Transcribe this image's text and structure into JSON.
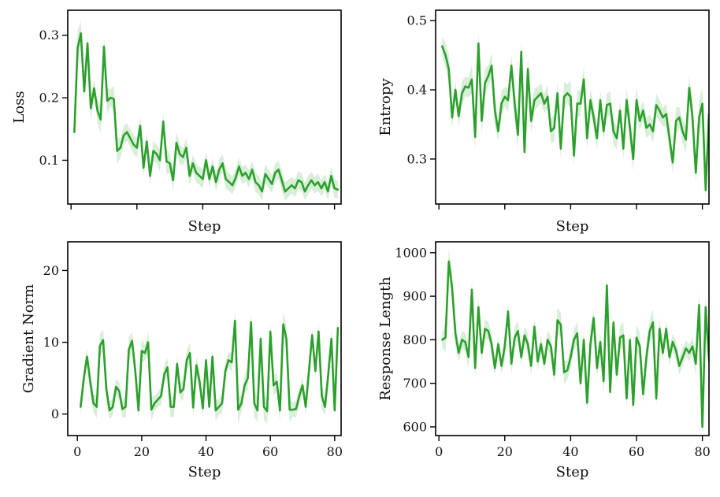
{
  "chart_data": [
    {
      "type": "line",
      "title": "",
      "xlabel": "Step",
      "ylabel": "Loss",
      "xlim": [
        -1,
        82
      ],
      "ylim": [
        0.03,
        0.34
      ],
      "xticks": [
        0,
        20,
        40,
        60,
        80
      ],
      "show_xtick_labels": false,
      "yticks": [
        0.1,
        0.2,
        0.3
      ],
      "ytick_labels": [
        "0.1",
        "0.2",
        "0.3"
      ],
      "band": 0.022,
      "series": [
        {
          "name": "Loss",
          "color": "#2ca02c",
          "x_start": 1,
          "x_step": 1,
          "values": [
            0.145,
            0.28,
            0.303,
            0.21,
            0.287,
            0.183,
            0.215,
            0.18,
            0.165,
            0.282,
            0.195,
            0.2,
            0.198,
            0.115,
            0.12,
            0.14,
            0.145,
            0.135,
            0.125,
            0.12,
            0.155,
            0.088,
            0.13,
            0.075,
            0.115,
            0.11,
            0.1,
            0.162,
            0.098,
            0.095,
            0.068,
            0.128,
            0.11,
            0.105,
            0.12,
            0.075,
            0.095,
            0.08,
            0.075,
            0.07,
            0.1,
            0.07,
            0.09,
            0.065,
            0.085,
            0.095,
            0.07,
            0.065,
            0.06,
            0.072,
            0.09,
            0.075,
            0.08,
            0.07,
            0.085,
            0.065,
            0.06,
            0.05,
            0.078,
            0.07,
            0.062,
            0.08,
            0.085,
            0.068,
            0.05,
            0.055,
            0.06,
            0.055,
            0.068,
            0.065,
            0.05,
            0.06,
            0.068,
            0.06,
            0.065,
            0.055,
            0.065,
            0.05,
            0.075,
            0.055,
            0.053
          ]
        }
      ]
    },
    {
      "type": "line",
      "title": "",
      "xlabel": "Step",
      "ylabel": "Entropy",
      "xlim": [
        -1,
        82
      ],
      "ylim": [
        0.235,
        0.515
      ],
      "xticks": [
        0,
        20,
        40,
        60,
        80
      ],
      "show_xtick_labels": false,
      "yticks": [
        0.3,
        0.4,
        0.5
      ],
      "ytick_labels": [
        "0.3",
        "0.4",
        "0.5"
      ],
      "band": 0.022,
      "series": [
        {
          "name": "Entropy",
          "color": "#2ca02c",
          "x_start": 1,
          "x_step": 1,
          "values": [
            0.463,
            0.45,
            0.43,
            0.36,
            0.4,
            0.362,
            0.395,
            0.405,
            0.403,
            0.415,
            0.332,
            0.467,
            0.355,
            0.41,
            0.42,
            0.435,
            0.37,
            0.34,
            0.38,
            0.39,
            0.385,
            0.435,
            0.38,
            0.335,
            0.455,
            0.31,
            0.43,
            0.355,
            0.385,
            0.39,
            0.395,
            0.38,
            0.39,
            0.34,
            0.345,
            0.395,
            0.315,
            0.39,
            0.395,
            0.39,
            0.305,
            0.38,
            0.38,
            0.415,
            0.33,
            0.385,
            0.36,
            0.33,
            0.385,
            0.34,
            0.378,
            0.38,
            0.34,
            0.33,
            0.37,
            0.315,
            0.385,
            0.345,
            0.3,
            0.385,
            0.355,
            0.37,
            0.345,
            0.35,
            0.34,
            0.378,
            0.37,
            0.36,
            0.365,
            0.33,
            0.295,
            0.355,
            0.36,
            0.34,
            0.328,
            0.403,
            0.36,
            0.28,
            0.36,
            0.38,
            0.255,
            0.365
          ]
        }
      ]
    },
    {
      "type": "line",
      "title": "",
      "xlabel": "Step",
      "ylabel": "Gradient Norm",
      "xlim": [
        -3,
        82
      ],
      "ylim": [
        -3,
        24
      ],
      "xticks": [
        0,
        20,
        40,
        60,
        80
      ],
      "show_xtick_labels": true,
      "xtick_labels": [
        "0",
        "20",
        "40",
        "60",
        "80"
      ],
      "yticks": [
        0,
        10,
        20
      ],
      "ytick_labels": [
        "0",
        "10",
        "20"
      ],
      "band": 1.6,
      "series": [
        {
          "name": "Gradient Norm",
          "color": "#2ca02c",
          "x_start": 1,
          "x_step": 1,
          "values": [
            1.0,
            5.0,
            8.0,
            4.5,
            1.5,
            1.0,
            9.5,
            10.3,
            3.5,
            0.5,
            1.0,
            3.8,
            3.2,
            0.7,
            1.0,
            9.0,
            10.2,
            6.0,
            0.5,
            8.8,
            8.5,
            10.0,
            0.6,
            1.5,
            2.0,
            2.5,
            5.5,
            6.5,
            1.0,
            1.0,
            7.0,
            3.0,
            3.5,
            7.5,
            8.5,
            0.9,
            6.8,
            4.5,
            0.8,
            7.5,
            1.0,
            8.0,
            0.5,
            1.0,
            1.5,
            6.0,
            7.5,
            7.2,
            13.0,
            0.6,
            1.5,
            4.0,
            5.0,
            12.8,
            1.5,
            0.5,
            10.5,
            1.0,
            0.4,
            11.5,
            4.0,
            4.5,
            0.5,
            12.5,
            10.5,
            0.6,
            0.6,
            0.7,
            2.5,
            4.0,
            1.0,
            6.0,
            11.0,
            6.0,
            11.5,
            2.5,
            1.0,
            5.5,
            10.5,
            0.5,
            12.0
          ]
        }
      ]
    },
    {
      "type": "line",
      "title": "",
      "xlabel": "Step",
      "ylabel": "Response Length",
      "xlim": [
        -1,
        82
      ],
      "ylim": [
        580,
        1025
      ],
      "xticks": [
        0,
        20,
        40,
        60,
        80
      ],
      "show_xtick_labels": true,
      "xtick_labels": [
        "0",
        "20",
        "40",
        "60",
        "80"
      ],
      "yticks": [
        600,
        700,
        800,
        900,
        1000
      ],
      "ytick_labels": [
        "600",
        "700",
        "800",
        "900",
        "1000"
      ],
      "band": 30,
      "series": [
        {
          "name": "Response Length",
          "color": "#2ca02c",
          "x_start": 1,
          "x_step": 1,
          "values": [
            800,
            805,
            980,
            920,
            815,
            770,
            800,
            795,
            760,
            915,
            735,
            875,
            770,
            825,
            820,
            790,
            735,
            790,
            740,
            785,
            865,
            745,
            805,
            820,
            760,
            810,
            790,
            740,
            830,
            750,
            790,
            745,
            800,
            785,
            720,
            845,
            835,
            725,
            730,
            760,
            800,
            815,
            700,
            800,
            655,
            790,
            850,
            735,
            795,
            705,
            925,
            680,
            840,
            720,
            805,
            810,
            665,
            800,
            650,
            805,
            785,
            675,
            760,
            820,
            840,
            665,
            825,
            770,
            825,
            760,
            795,
            775,
            740,
            760,
            780,
            770,
            785,
            745,
            880,
            600,
            875,
            755,
            720
          ]
        }
      ]
    }
  ]
}
